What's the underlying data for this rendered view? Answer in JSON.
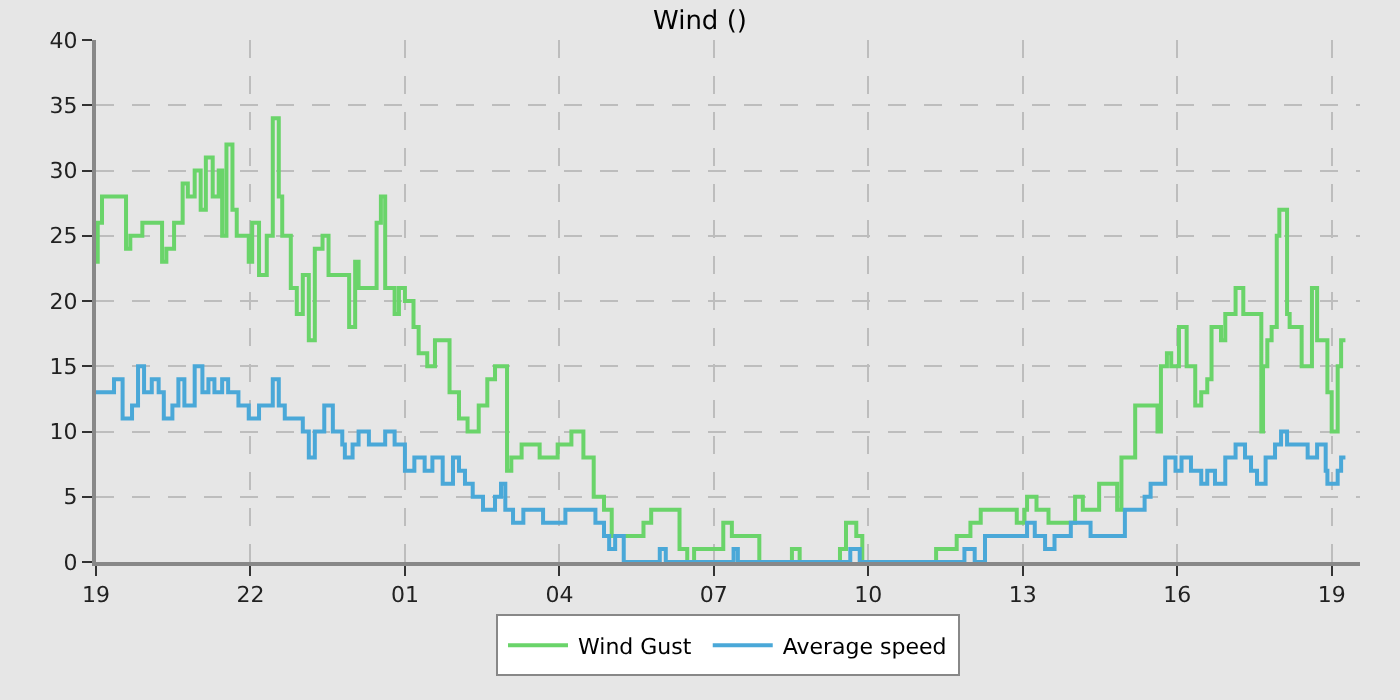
{
  "chart_data": {
    "type": "step",
    "title": "Wind ()",
    "xlim": [
      "--01-01T19:00",
      "--01-02T19:33"
    ],
    "xticks": [
      {
        "value": "--01-01T19:00",
        "label": "19"
      },
      {
        "value": "--01-01T22:00",
        "label": "22"
      },
      {
        "value": "--01-02T01:00",
        "label": "01"
      },
      {
        "value": "--01-02T04:00",
        "label": "04"
      },
      {
        "value": "--01-02T07:00",
        "label": "07"
      },
      {
        "value": "--01-02T10:00",
        "label": "10"
      },
      {
        "value": "--01-02T13:00",
        "label": "13"
      },
      {
        "value": "--01-02T16:00",
        "label": "16"
      },
      {
        "value": "--01-02T19:00",
        "label": "19"
      }
    ],
    "ylim": [
      0,
      40
    ],
    "yticks": [
      0,
      5,
      10,
      15,
      20,
      25,
      30,
      35,
      40
    ],
    "grid": true,
    "legend": "bottom",
    "line_style": "solid",
    "marker": "none",
    "series": [
      {
        "name": "Wind Gust",
        "color": "#6ad46a",
        "x": [
          "--01-01T19:00",
          "--01-01T19:02",
          "--01-01T19:07",
          "--01-01T19:35",
          "--01-01T19:40",
          "--01-01T19:54",
          "--01-01T20:13",
          "--01-01T20:17",
          "--01-01T20:22",
          "--01-01T20:31",
          "--01-01T20:41",
          "--01-01T20:47",
          "--01-01T20:55",
          "--01-01T21:02",
          "--01-01T21:08",
          "--01-01T21:16",
          "--01-01T21:23",
          "--01-01T21:27",
          "--01-01T21:32",
          "--01-01T21:39",
          "--01-01T21:44",
          "--01-01T21:58",
          "--01-01T22:02",
          "--01-01T22:10",
          "--01-01T22:19",
          "--01-01T22:26",
          "--01-01T22:33",
          "--01-01T22:37",
          "--01-01T22:47",
          "--01-01T22:54",
          "--01-01T23:01",
          "--01-01T23:08",
          "--01-01T23:15",
          "--01-01T23:24",
          "--01-01T23:31",
          "--01-01T23:55",
          "--01-02T00:02",
          "--01-02T00:06",
          "--01-02T00:27",
          "--01-02T00:32",
          "--01-02T00:37",
          "--01-02T00:48",
          "--01-02T00:53",
          "--01-02T01:00",
          "--01-02T01:10",
          "--01-02T01:16",
          "--01-02T01:26",
          "--01-02T01:35",
          "--01-02T01:52",
          "--01-02T02:03",
          "--01-02T02:13",
          "--01-02T02:26",
          "--01-02T02:36",
          "--01-02T02:45",
          "--01-02T02:59",
          "--01-02T03:04",
          "--01-02T03:16",
          "--01-02T03:37",
          "--01-02T03:58",
          "--01-02T04:14",
          "--01-02T04:28",
          "--01-02T04:40",
          "--01-02T04:52",
          "--01-02T05:01",
          "--01-02T05:24",
          "--01-02T05:38",
          "--01-02T05:47",
          "--01-02T06:20",
          "--01-02T06:29",
          "--01-02T06:37",
          "--01-02T06:48",
          "--01-02T07:11",
          "--01-02T07:21",
          "--01-02T07:53",
          "--01-02T08:31",
          "--01-02T08:40",
          "--01-02T09:27",
          "--01-02T09:34",
          "--01-02T09:46",
          "--01-02T09:53",
          "--01-02T11:19",
          "--01-02T11:43",
          "--01-02T11:59",
          "--01-02T12:11",
          "--01-02T12:53",
          "--01-02T13:02",
          "--01-02T13:05",
          "--01-02T13:16",
          "--01-02T13:30",
          "--01-02T14:01",
          "--01-02T14:10",
          "--01-02T14:29",
          "--01-02T14:50",
          "--01-02T14:55",
          "--01-02T15:11",
          "--01-02T15:37",
          "--01-02T15:41",
          "--01-02T15:48",
          "--01-02T15:53",
          "--01-02T16:02",
          "--01-02T16:11",
          "--01-02T16:21",
          "--01-02T16:28",
          "--01-02T16:35",
          "--01-02T16:40",
          "--01-02T16:51",
          "--01-02T16:56",
          "--01-02T17:08",
          "--01-02T17:17",
          "--01-02T17:38",
          "--01-02T17:40",
          "--01-02T17:45",
          "--01-02T17:50",
          "--01-02T17:56",
          "--01-02T17:59",
          "--01-02T18:08",
          "--01-02T18:11",
          "--01-02T18:25",
          "--01-02T18:37",
          "--01-02T18:43",
          "--01-02T18:55",
          "--01-02T19:00",
          "--01-02T19:07",
          "--01-02T19:11",
          "--01-02T19:16"
        ],
        "values": [
          23,
          26,
          28,
          24,
          25,
          26,
          26,
          23,
          24,
          26,
          29,
          28,
          30,
          27,
          31,
          28,
          30,
          25,
          32,
          27,
          25,
          23,
          26,
          22,
          25,
          34,
          28,
          25,
          21,
          19,
          22,
          17,
          24,
          25,
          22,
          18,
          23,
          21,
          26,
          28,
          21,
          19,
          21,
          20,
          18,
          16,
          15,
          17,
          13,
          11,
          10,
          12,
          14,
          15,
          7,
          8,
          9,
          8,
          9,
          10,
          8,
          5,
          4,
          2,
          2,
          3,
          4,
          1,
          0,
          1,
          1,
          3,
          2,
          0,
          1,
          0,
          1,
          3,
          2,
          0,
          1,
          2,
          3,
          4,
          3,
          4,
          5,
          4,
          3,
          5,
          4,
          6,
          4,
          8,
          12,
          10,
          15,
          16,
          15,
          18,
          15,
          12,
          13,
          14,
          18,
          17,
          19,
          21,
          19,
          10,
          15,
          17,
          18,
          25,
          27,
          19,
          18,
          15,
          21,
          17,
          13,
          10,
          15,
          17,
          17
        ]
      },
      {
        "name": "Average speed",
        "color": "#4aa8d8",
        "x": [
          "--01-01T19:00",
          "--01-01T19:21",
          "--01-01T19:31",
          "--01-01T19:42",
          "--01-01T19:49",
          "--01-01T19:56",
          "--01-01T20:05",
          "--01-01T20:13",
          "--01-01T20:19",
          "--01-01T20:29",
          "--01-01T20:36",
          "--01-01T20:43",
          "--01-01T20:55",
          "--01-01T21:04",
          "--01-01T21:11",
          "--01-01T21:18",
          "--01-01T21:27",
          "--01-01T21:34",
          "--01-01T21:46",
          "--01-01T21:58",
          "--01-01T22:10",
          "--01-01T22:26",
          "--01-01T22:33",
          "--01-01T22:40",
          "--01-01T23:01",
          "--01-01T23:08",
          "--01-01T23:15",
          "--01-01T23:26",
          "--01-01T23:36",
          "--01-01T23:47",
          "--01-01T23:50",
          "--01-01T23:59",
          "--01-02T00:06",
          "--01-02T00:18",
          "--01-02T00:37",
          "--01-02T00:48",
          "--01-02T01:00",
          "--01-02T01:11",
          "--01-02T01:23",
          "--01-02T01:32",
          "--01-02T01:44",
          "--01-02T01:56",
          "--01-02T02:03",
          "--01-02T02:10",
          "--01-02T02:19",
          "--01-02T02:31",
          "--01-02T02:45",
          "--01-02T02:52",
          "--01-02T02:57",
          "--01-02T03:06",
          "--01-02T03:18",
          "--01-02T03:41",
          "--01-02T04:07",
          "--01-02T04:42",
          "--01-02T04:52",
          "--01-02T04:58",
          "--01-02T05:05",
          "--01-02T05:15",
          "--01-02T05:52",
          "--01-02T05:57",
          "--01-02T06:04",
          "--01-02T07:23",
          "--01-02T07:28",
          "--01-02T09:39",
          "--01-02T09:50",
          "--01-02T11:52",
          "--01-02T12:04",
          "--01-02T12:16",
          "--01-02T13:05",
          "--01-02T13:14",
          "--01-02T13:26",
          "--01-02T13:37",
          "--01-02T13:56",
          "--01-02T14:19",
          "--01-02T14:59",
          "--01-02T15:22",
          "--01-02T15:29",
          "--01-02T15:46",
          "--01-02T15:58",
          "--01-02T16:05",
          "--01-02T16:16",
          "--01-02T16:28",
          "--01-02T16:35",
          "--01-02T16:44",
          "--01-02T16:56",
          "--01-02T17:08",
          "--01-02T17:19",
          "--01-02T17:26",
          "--01-02T17:33",
          "--01-02T17:43",
          "--01-02T17:54",
          "--01-02T18:01",
          "--01-02T18:08",
          "--01-02T18:32",
          "--01-02T18:43",
          "--01-02T18:53",
          "--01-02T18:55",
          "--01-02T19:07",
          "--01-02T19:11",
          "--01-02T19:16"
        ],
        "values": [
          13,
          14,
          11,
          12,
          15,
          13,
          14,
          13,
          11,
          12,
          14,
          12,
          15,
          13,
          14,
          13,
          14,
          13,
          12,
          11,
          12,
          14,
          12,
          11,
          10,
          8,
          10,
          12,
          10,
          9,
          8,
          9,
          10,
          9,
          10,
          9,
          7,
          8,
          7,
          8,
          6,
          8,
          7,
          6,
          5,
          4,
          5,
          6,
          4,
          3,
          4,
          3,
          4,
          3,
          2,
          1,
          2,
          0,
          0,
          1,
          0,
          1,
          0,
          1,
          0,
          1,
          0,
          2,
          3,
          2,
          1,
          2,
          3,
          2,
          4,
          5,
          6,
          8,
          7,
          8,
          7,
          6,
          7,
          6,
          8,
          9,
          8,
          7,
          6,
          8,
          9,
          10,
          9,
          8,
          9,
          7,
          6,
          7,
          8,
          8
        ]
      }
    ]
  }
}
